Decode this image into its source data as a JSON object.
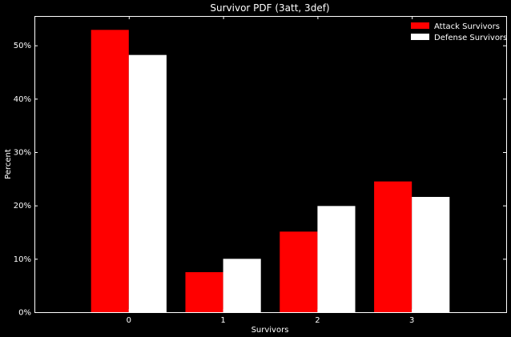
{
  "chart_data": {
    "type": "bar",
    "title": "Survivor PDF (3att, 3def)",
    "xlabel": "Survivors",
    "ylabel": "Percent",
    "categories": [
      "0",
      "1",
      "2",
      "3"
    ],
    "series": [
      {
        "name": "Attack Survivors",
        "color": "#ff0000",
        "values": [
          52.9,
          7.5,
          15.1,
          24.5
        ]
      },
      {
        "name": "Defense Survivors",
        "color": "#ffffff",
        "values": [
          48.2,
          10.0,
          19.9,
          21.6
        ]
      }
    ],
    "ylim": [
      0,
      55.5
    ],
    "yticks": [
      0,
      10,
      20,
      30,
      40,
      50
    ],
    "ytick_labels": [
      "0%",
      "10%",
      "20%",
      "30%",
      "40%",
      "50%"
    ],
    "xlim": [
      -1,
      4
    ],
    "grid": false,
    "legend": "top-right",
    "background": "#000000",
    "axis_color": "#ffffff"
  }
}
